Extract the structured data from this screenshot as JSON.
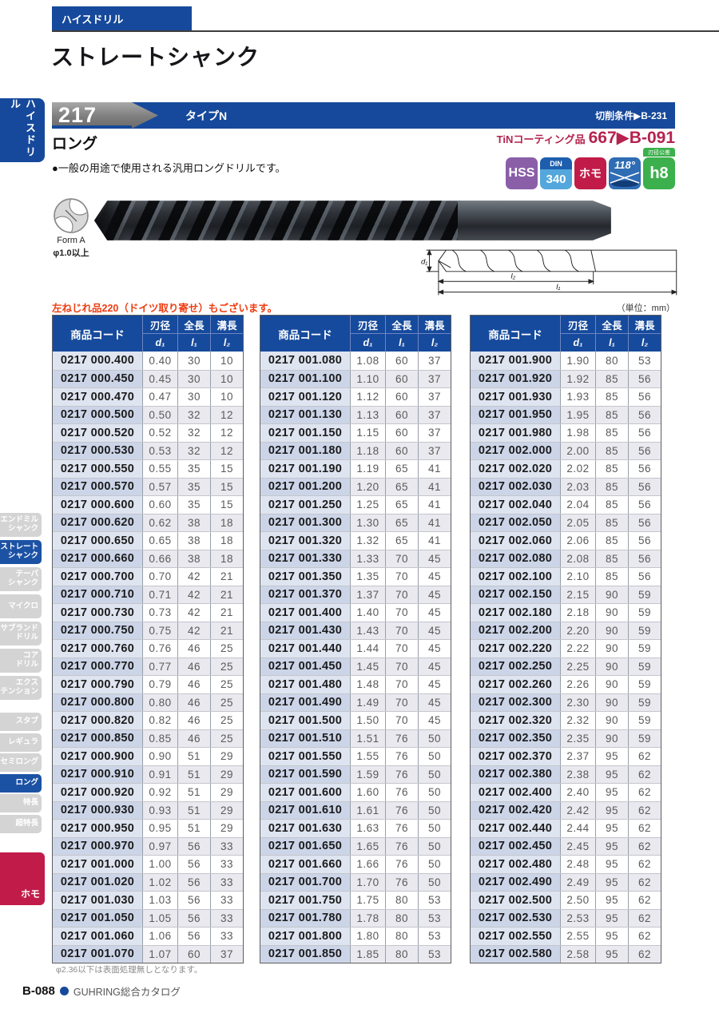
{
  "page": {
    "category_tab": "ハイスドリル",
    "title": "ストレートシャンク",
    "footer": {
      "page_no": "B-088",
      "catalog_name": "GUHRING総合カタログ"
    }
  },
  "sidebar": {
    "vertical_title": "ハイスドリル",
    "bottom_tab": "ホモ",
    "items": [
      {
        "label": "エンドミル\nシャンク",
        "active": false
      },
      {
        "label": "ストレート\nシャンク",
        "active": true
      },
      {
        "label": "テーパ\nシャンク",
        "active": false
      },
      {
        "label": "マイクロ",
        "active": false
      },
      {
        "label": "サブランド\nドリル",
        "active": false
      },
      {
        "label": "コア\nドリル",
        "active": false
      },
      {
        "label": "エクス\nテンション",
        "active": false
      },
      {
        "label": "スタブ",
        "active": false,
        "gap_before": true
      },
      {
        "label": "レギュラ",
        "active": false
      },
      {
        "label": "セミロング",
        "active": false
      },
      {
        "label": "ロング",
        "active": true
      },
      {
        "label": "特長",
        "active": false
      },
      {
        "label": "超特長",
        "active": false
      }
    ]
  },
  "product": {
    "number": "217",
    "type": "タイプN",
    "cutting_ref": "切削条件▶B-231",
    "series": "ロング",
    "tin_label": "TiNコーティング品",
    "tin_ref": "667▶B-091",
    "description": "●一般の用途で使用される汎用ロングドリルです。",
    "form_label": "Form A",
    "form_note": "φ1.0以上",
    "badges": {
      "hss": "HSS",
      "din_top": "DIN",
      "din_bottom": "340",
      "homo": "ホモ",
      "angle": "118°",
      "tolerance_tag": "刃径公差",
      "tolerance": "h8"
    },
    "diagram": {
      "d1": "d₁",
      "l1": "l₁",
      "l2": "l₂"
    }
  },
  "tables": {
    "note_red": "左ねじれ品220（ドイツ取り寄せ）もございます。",
    "unit": "（単位：mm）",
    "footnote": "φ2.36以下は表面処理無しとなります。",
    "headers": {
      "code": "商品コード",
      "d_label": "刃径",
      "d_sym": "d₁",
      "l1_label": "全長",
      "l1_sym": "l₁",
      "l2_label": "溝長",
      "l2_sym": "l₂"
    },
    "columns": [
      {
        "rows": [
          [
            "0217 000.400",
            "0.40",
            "30",
            "10"
          ],
          [
            "0217 000.450",
            "0.45",
            "30",
            "10"
          ],
          [
            "0217 000.470",
            "0.47",
            "30",
            "10"
          ],
          [
            "0217 000.500",
            "0.50",
            "32",
            "12"
          ],
          [
            "0217 000.520",
            "0.52",
            "32",
            "12"
          ],
          [
            "0217 000.530",
            "0.53",
            "32",
            "12"
          ],
          [
            "0217 000.550",
            "0.55",
            "35",
            "15"
          ],
          [
            "0217 000.570",
            "0.57",
            "35",
            "15"
          ],
          [
            "0217 000.600",
            "0.60",
            "35",
            "15"
          ],
          [
            "0217 000.620",
            "0.62",
            "38",
            "18"
          ],
          [
            "0217 000.650",
            "0.65",
            "38",
            "18"
          ],
          [
            "0217 000.660",
            "0.66",
            "38",
            "18"
          ],
          [
            "0217 000.700",
            "0.70",
            "42",
            "21"
          ],
          [
            "0217 000.710",
            "0.71",
            "42",
            "21"
          ],
          [
            "0217 000.730",
            "0.73",
            "42",
            "21"
          ],
          [
            "0217 000.750",
            "0.75",
            "42",
            "21"
          ],
          [
            "0217 000.760",
            "0.76",
            "46",
            "25"
          ],
          [
            "0217 000.770",
            "0.77",
            "46",
            "25"
          ],
          [
            "0217 000.790",
            "0.79",
            "46",
            "25"
          ],
          [
            "0217 000.800",
            "0.80",
            "46",
            "25"
          ],
          [
            "0217 000.820",
            "0.82",
            "46",
            "25"
          ],
          [
            "0217 000.850",
            "0.85",
            "46",
            "25"
          ],
          [
            "0217 000.900",
            "0.90",
            "51",
            "29"
          ],
          [
            "0217 000.910",
            "0.91",
            "51",
            "29"
          ],
          [
            "0217 000.920",
            "0.92",
            "51",
            "29"
          ],
          [
            "0217 000.930",
            "0.93",
            "51",
            "29"
          ],
          [
            "0217 000.950",
            "0.95",
            "51",
            "29"
          ],
          [
            "0217 000.970",
            "0.97",
            "56",
            "33"
          ],
          [
            "0217 001.000",
            "1.00",
            "56",
            "33"
          ],
          [
            "0217 001.020",
            "1.02",
            "56",
            "33"
          ],
          [
            "0217 001.030",
            "1.03",
            "56",
            "33"
          ],
          [
            "0217 001.050",
            "1.05",
            "56",
            "33"
          ],
          [
            "0217 001.060",
            "1.06",
            "56",
            "33"
          ],
          [
            "0217 001.070",
            "1.07",
            "60",
            "37"
          ]
        ]
      },
      {
        "rows": [
          [
            "0217 001.080",
            "1.08",
            "60",
            "37"
          ],
          [
            "0217 001.100",
            "1.10",
            "60",
            "37"
          ],
          [
            "0217 001.120",
            "1.12",
            "60",
            "37"
          ],
          [
            "0217 001.130",
            "1.13",
            "60",
            "37"
          ],
          [
            "0217 001.150",
            "1.15",
            "60",
            "37"
          ],
          [
            "0217 001.180",
            "1.18",
            "60",
            "37"
          ],
          [
            "0217 001.190",
            "1.19",
            "65",
            "41"
          ],
          [
            "0217 001.200",
            "1.20",
            "65",
            "41"
          ],
          [
            "0217 001.250",
            "1.25",
            "65",
            "41"
          ],
          [
            "0217 001.300",
            "1.30",
            "65",
            "41"
          ],
          [
            "0217 001.320",
            "1.32",
            "65",
            "41"
          ],
          [
            "0217 001.330",
            "1.33",
            "70",
            "45"
          ],
          [
            "0217 001.350",
            "1.35",
            "70",
            "45"
          ],
          [
            "0217 001.370",
            "1.37",
            "70",
            "45"
          ],
          [
            "0217 001.400",
            "1.40",
            "70",
            "45"
          ],
          [
            "0217 001.430",
            "1.43",
            "70",
            "45"
          ],
          [
            "0217 001.440",
            "1.44",
            "70",
            "45"
          ],
          [
            "0217 001.450",
            "1.45",
            "70",
            "45"
          ],
          [
            "0217 001.480",
            "1.48",
            "70",
            "45"
          ],
          [
            "0217 001.490",
            "1.49",
            "70",
            "45"
          ],
          [
            "0217 001.500",
            "1.50",
            "70",
            "45"
          ],
          [
            "0217 001.510",
            "1.51",
            "76",
            "50"
          ],
          [
            "0217 001.550",
            "1.55",
            "76",
            "50"
          ],
          [
            "0217 001.590",
            "1.59",
            "76",
            "50"
          ],
          [
            "0217 001.600",
            "1.60",
            "76",
            "50"
          ],
          [
            "0217 001.610",
            "1.61",
            "76",
            "50"
          ],
          [
            "0217 001.630",
            "1.63",
            "76",
            "50"
          ],
          [
            "0217 001.650",
            "1.65",
            "76",
            "50"
          ],
          [
            "0217 001.660",
            "1.66",
            "76",
            "50"
          ],
          [
            "0217 001.700",
            "1.70",
            "76",
            "50"
          ],
          [
            "0217 001.750",
            "1.75",
            "80",
            "53"
          ],
          [
            "0217 001.780",
            "1.78",
            "80",
            "53"
          ],
          [
            "0217 001.800",
            "1.80",
            "80",
            "53"
          ],
          [
            "0217 001.850",
            "1.85",
            "80",
            "53"
          ]
        ]
      },
      {
        "rows": [
          [
            "0217 001.900",
            "1.90",
            "80",
            "53"
          ],
          [
            "0217 001.920",
            "1.92",
            "85",
            "56"
          ],
          [
            "0217 001.930",
            "1.93",
            "85",
            "56"
          ],
          [
            "0217 001.950",
            "1.95",
            "85",
            "56"
          ],
          [
            "0217 001.980",
            "1.98",
            "85",
            "56"
          ],
          [
            "0217 002.000",
            "2.00",
            "85",
            "56"
          ],
          [
            "0217 002.020",
            "2.02",
            "85",
            "56"
          ],
          [
            "0217 002.030",
            "2.03",
            "85",
            "56"
          ],
          [
            "0217 002.040",
            "2.04",
            "85",
            "56"
          ],
          [
            "0217 002.050",
            "2.05",
            "85",
            "56"
          ],
          [
            "0217 002.060",
            "2.06",
            "85",
            "56"
          ],
          [
            "0217 002.080",
            "2.08",
            "85",
            "56"
          ],
          [
            "0217 002.100",
            "2.10",
            "85",
            "56"
          ],
          [
            "0217 002.150",
            "2.15",
            "90",
            "59"
          ],
          [
            "0217 002.180",
            "2.18",
            "90",
            "59"
          ],
          [
            "0217 002.200",
            "2.20",
            "90",
            "59"
          ],
          [
            "0217 002.220",
            "2.22",
            "90",
            "59"
          ],
          [
            "0217 002.250",
            "2.25",
            "90",
            "59"
          ],
          [
            "0217 002.260",
            "2.26",
            "90",
            "59"
          ],
          [
            "0217 002.300",
            "2.30",
            "90",
            "59"
          ],
          [
            "0217 002.320",
            "2.32",
            "90",
            "59"
          ],
          [
            "0217 002.350",
            "2.35",
            "90",
            "59"
          ],
          [
            "0217 002.370",
            "2.37",
            "95",
            "62"
          ],
          [
            "0217 002.380",
            "2.38",
            "95",
            "62"
          ],
          [
            "0217 002.400",
            "2.40",
            "95",
            "62"
          ],
          [
            "0217 002.420",
            "2.42",
            "95",
            "62"
          ],
          [
            "0217 002.440",
            "2.44",
            "95",
            "62"
          ],
          [
            "0217 002.450",
            "2.45",
            "95",
            "62"
          ],
          [
            "0217 002.480",
            "2.48",
            "95",
            "62"
          ],
          [
            "0217 002.490",
            "2.49",
            "95",
            "62"
          ],
          [
            "0217 002.500",
            "2.50",
            "95",
            "62"
          ],
          [
            "0217 002.530",
            "2.53",
            "95",
            "62"
          ],
          [
            "0217 002.550",
            "2.55",
            "95",
            "62"
          ],
          [
            "0217 002.580",
            "2.58",
            "95",
            "62"
          ]
        ]
      }
    ]
  }
}
